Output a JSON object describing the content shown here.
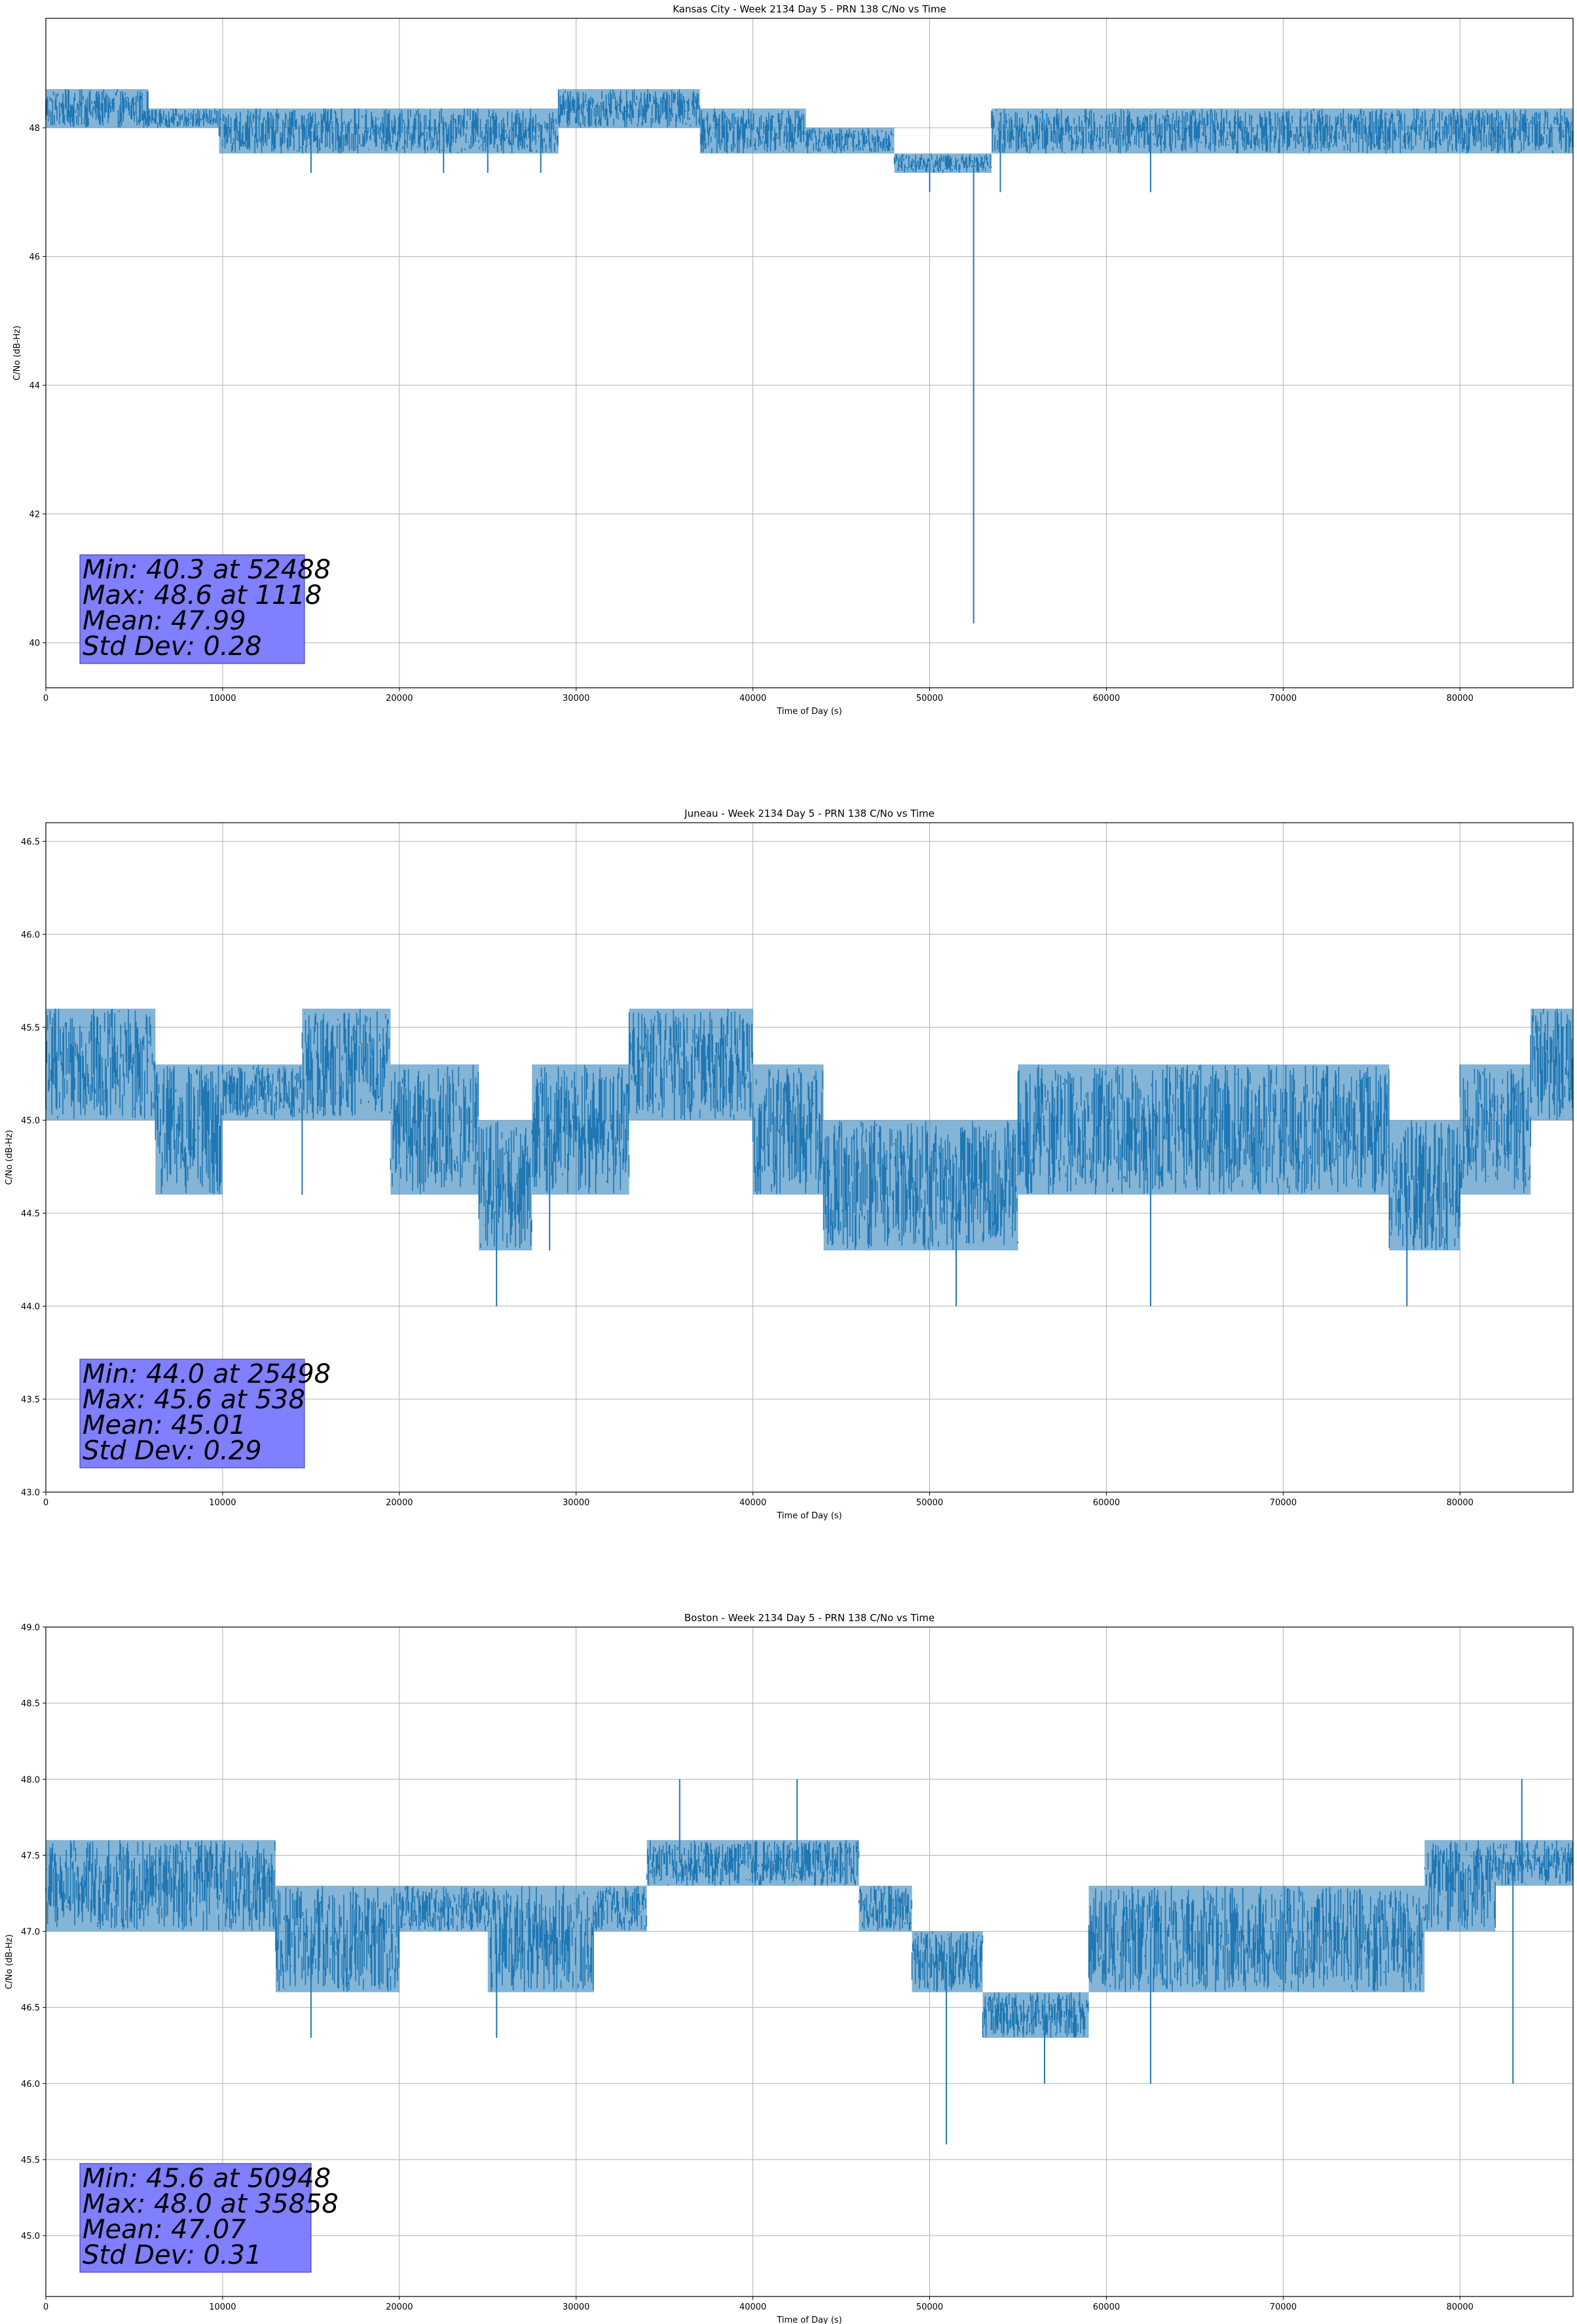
{
  "chart_data": [
    {
      "type": "line",
      "title": "Kansas City - Week 2134 Day 5 - PRN 138 C/No vs Time",
      "xlabel": "Time of Day (s)",
      "ylabel": "C/No (dB-Hz)",
      "xlim": [
        0,
        86400
      ],
      "ylim": [
        39.3,
        49.7
      ],
      "xticks": [
        0,
        10000,
        20000,
        30000,
        40000,
        50000,
        60000,
        70000,
        80000
      ],
      "yticks": [
        40,
        42,
        44,
        46,
        48
      ],
      "ytick_labels": [
        "40",
        "42",
        "44",
        "46",
        "48"
      ],
      "grid": true,
      "color": "#1f77b4",
      "stats_box": [
        "Min: 40.3 at 52488",
        "Max: 48.6 at 1118",
        "Mean: 47.99",
        "Std Dev: 0.28"
      ],
      "bands": [
        {
          "x": [
            0,
            5800
          ],
          "low": 48.0,
          "high": 48.6
        },
        {
          "x": [
            5800,
            9800
          ],
          "low": 48.0,
          "high": 48.3
        },
        {
          "x": [
            9800,
            29000
          ],
          "low": 47.6,
          "high": 48.3
        },
        {
          "x": [
            29000,
            37000
          ],
          "low": 48.0,
          "high": 48.6
        },
        {
          "x": [
            37000,
            43000
          ],
          "low": 47.6,
          "high": 48.3
        },
        {
          "x": [
            43000,
            48000
          ],
          "low": 47.6,
          "high": 48.0
        },
        {
          "x": [
            48000,
            53500
          ],
          "low": 47.3,
          "high": 47.6
        },
        {
          "x": [
            53500,
            59000
          ],
          "low": 47.6,
          "high": 48.3
        },
        {
          "x": [
            59000,
            86400
          ],
          "low": 47.6,
          "high": 48.3
        }
      ],
      "spikes": [
        {
          "x": 1118,
          "y": 48.6
        },
        {
          "x": 15000,
          "y": 47.3
        },
        {
          "x": 22500,
          "y": 47.3
        },
        {
          "x": 25000,
          "y": 47.3
        },
        {
          "x": 28000,
          "y": 47.3
        },
        {
          "x": 50000,
          "y": 47.0
        },
        {
          "x": 52488,
          "y": 40.3
        },
        {
          "x": 54000,
          "y": 47.0
        },
        {
          "x": 62500,
          "y": 47.0
        }
      ]
    },
    {
      "type": "line",
      "title": "Juneau - Week 2134 Day 5 - PRN 138 C/No vs Time",
      "xlabel": "Time of Day (s)",
      "ylabel": "C/No (dB-Hz)",
      "xlim": [
        0,
        86400
      ],
      "ylim": [
        43.0,
        46.6
      ],
      "xticks": [
        0,
        10000,
        20000,
        30000,
        40000,
        50000,
        60000,
        70000,
        80000
      ],
      "yticks": [
        43.0,
        43.5,
        44.0,
        44.5,
        45.0,
        45.5,
        46.0,
        46.5
      ],
      "ytick_labels": [
        "43.0",
        "43.5",
        "44.0",
        "44.5",
        "45.0",
        "45.5",
        "46.0",
        "46.5"
      ],
      "grid": true,
      "color": "#1f77b4",
      "stats_box": [
        "Min: 44.0 at 25498",
        "Max: 45.6 at 538",
        "Mean: 45.01",
        "Std Dev: 0.29"
      ],
      "bands": [
        {
          "x": [
            0,
            6200
          ],
          "low": 45.0,
          "high": 45.6
        },
        {
          "x": [
            6200,
            10000
          ],
          "low": 44.6,
          "high": 45.3
        },
        {
          "x": [
            10000,
            14500
          ],
          "low": 45.0,
          "high": 45.3
        },
        {
          "x": [
            14500,
            19500
          ],
          "low": 45.0,
          "high": 45.6
        },
        {
          "x": [
            19500,
            24500
          ],
          "low": 44.6,
          "high": 45.3
        },
        {
          "x": [
            24500,
            27500
          ],
          "low": 44.3,
          "high": 45.0
        },
        {
          "x": [
            27500,
            33000
          ],
          "low": 44.6,
          "high": 45.3
        },
        {
          "x": [
            33000,
            40000
          ],
          "low": 45.0,
          "high": 45.6
        },
        {
          "x": [
            40000,
            44000
          ],
          "low": 44.6,
          "high": 45.3
        },
        {
          "x": [
            44000,
            55000
          ],
          "low": 44.3,
          "high": 45.0
        },
        {
          "x": [
            55000,
            65000
          ],
          "low": 44.6,
          "high": 45.3
        },
        {
          "x": [
            65000,
            76000
          ],
          "low": 44.6,
          "high": 45.3
        },
        {
          "x": [
            76000,
            80000
          ],
          "low": 44.3,
          "high": 45.0
        },
        {
          "x": [
            80000,
            84000
          ],
          "low": 44.6,
          "high": 45.3
        },
        {
          "x": [
            84000,
            86400
          ],
          "low": 45.0,
          "high": 45.6
        }
      ],
      "spikes": [
        {
          "x": 538,
          "y": 45.6
        },
        {
          "x": 14500,
          "y": 44.6
        },
        {
          "x": 25498,
          "y": 44.0
        },
        {
          "x": 28500,
          "y": 44.3
        },
        {
          "x": 51500,
          "y": 44.0
        },
        {
          "x": 62500,
          "y": 44.0
        },
        {
          "x": 77000,
          "y": 44.0
        }
      ]
    },
    {
      "type": "line",
      "title": "Boston - Week 2134 Day 5 - PRN 138 C/No vs Time",
      "xlabel": "Time of Day (s)",
      "ylabel": "C/No (dB-Hz)",
      "xlim": [
        0,
        86400
      ],
      "ylim": [
        44.6,
        49.0
      ],
      "xticks": [
        0,
        10000,
        20000,
        30000,
        40000,
        50000,
        60000,
        70000,
        80000
      ],
      "yticks": [
        45.0,
        45.5,
        46.0,
        46.5,
        47.0,
        47.5,
        48.0,
        48.5,
        49.0
      ],
      "ytick_labels": [
        "45.0",
        "45.5",
        "46.0",
        "46.5",
        "47.0",
        "47.5",
        "48.0",
        "48.5",
        "49.0"
      ],
      "grid": true,
      "color": "#1f77b4",
      "stats_box": [
        "Min: 45.6 at 50948",
        "Max: 48.0 at 35858",
        "Mean: 47.07",
        "Std Dev: 0.31"
      ],
      "bands": [
        {
          "x": [
            0,
            13000
          ],
          "low": 47.0,
          "high": 47.6
        },
        {
          "x": [
            13000,
            20000
          ],
          "low": 46.6,
          "high": 47.3
        },
        {
          "x": [
            20000,
            25000
          ],
          "low": 47.0,
          "high": 47.3
        },
        {
          "x": [
            25000,
            31000
          ],
          "low": 46.6,
          "high": 47.3
        },
        {
          "x": [
            31000,
            34000
          ],
          "low": 47.0,
          "high": 47.3
        },
        {
          "x": [
            34000,
            46000
          ],
          "low": 47.3,
          "high": 47.6
        },
        {
          "x": [
            46000,
            49000
          ],
          "low": 47.0,
          "high": 47.3
        },
        {
          "x": [
            49000,
            53000
          ],
          "low": 46.6,
          "high": 47.0
        },
        {
          "x": [
            53000,
            59000
          ],
          "low": 46.3,
          "high": 46.6
        },
        {
          "x": [
            59000,
            78000
          ],
          "low": 46.6,
          "high": 47.3
        },
        {
          "x": [
            78000,
            82000
          ],
          "low": 47.0,
          "high": 47.6
        },
        {
          "x": [
            82000,
            86400
          ],
          "low": 47.3,
          "high": 47.6
        }
      ],
      "spikes": [
        {
          "x": 15000,
          "y": 46.3
        },
        {
          "x": 25500,
          "y": 46.3
        },
        {
          "x": 35858,
          "y": 48.0
        },
        {
          "x": 42500,
          "y": 48.0
        },
        {
          "x": 50948,
          "y": 45.6
        },
        {
          "x": 56500,
          "y": 46.0
        },
        {
          "x": 62500,
          "y": 46.0
        },
        {
          "x": 83000,
          "y": 46.0
        },
        {
          "x": 83500,
          "y": 48.0
        }
      ]
    }
  ]
}
